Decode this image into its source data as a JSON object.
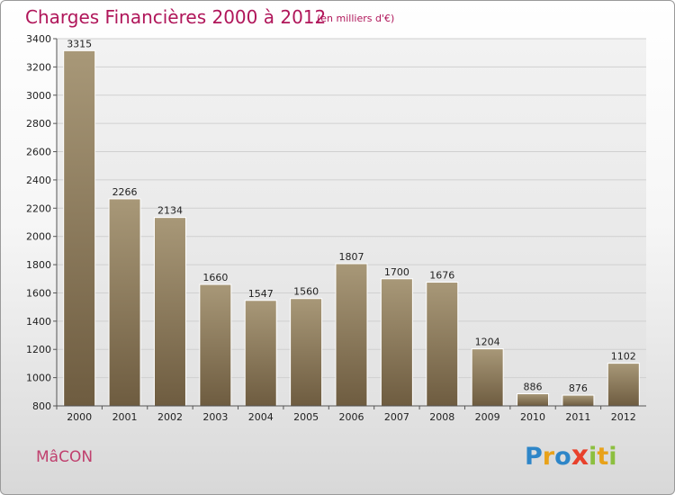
{
  "header": {
    "title": "Charges Financières 2000 à 2012",
    "subtitle": "(en milliers d'€)"
  },
  "footer": {
    "commune": "MâCON",
    "logo": "Proxiti",
    "logo_letters": [
      {
        "ch": "P",
        "color": "#2e86c8"
      },
      {
        "ch": "r",
        "color": "#e8a21a"
      },
      {
        "ch": "o",
        "color": "#2e86c8"
      },
      {
        "ch": "x",
        "color": "#e8412c"
      },
      {
        "ch": "i",
        "color": "#8cbf3f"
      },
      {
        "ch": "t",
        "color": "#e8a21a"
      },
      {
        "ch": "i",
        "color": "#8cbf3f"
      }
    ]
  },
  "colors": {
    "title": "#b0165a",
    "bar_top": "#a89878",
    "bar_bottom": "#6e5c40",
    "plot_bg_top": "#f2f2f2",
    "plot_bg_bottom": "#e2e2e2"
  },
  "chart_data": {
    "type": "bar",
    "title": "Charges Financières 2000 à 2012",
    "subtitle": "(en milliers d'€)",
    "categories": [
      "2000",
      "2001",
      "2002",
      "2003",
      "2004",
      "2005",
      "2006",
      "2007",
      "2008",
      "2009",
      "2010",
      "2011",
      "2012"
    ],
    "values": [
      3315,
      2266,
      2134,
      1660,
      1547,
      1560,
      1807,
      1700,
      1676,
      1204,
      886,
      876,
      1102
    ],
    "value_labels": [
      "3315",
      "2266",
      "2134",
      "1660",
      "1547",
      "1560",
      "1807",
      "1700",
      "1676",
      "1204",
      "886",
      "876",
      "1102"
    ],
    "yticks": [
      "800",
      "1000",
      "1200",
      "1400",
      "1600",
      "1800",
      "2000",
      "2200",
      "2400",
      "2600",
      "2800",
      "3000",
      "3200",
      "3400"
    ],
    "ylim": [
      800,
      3400
    ],
    "grid": true,
    "legend": "none"
  }
}
